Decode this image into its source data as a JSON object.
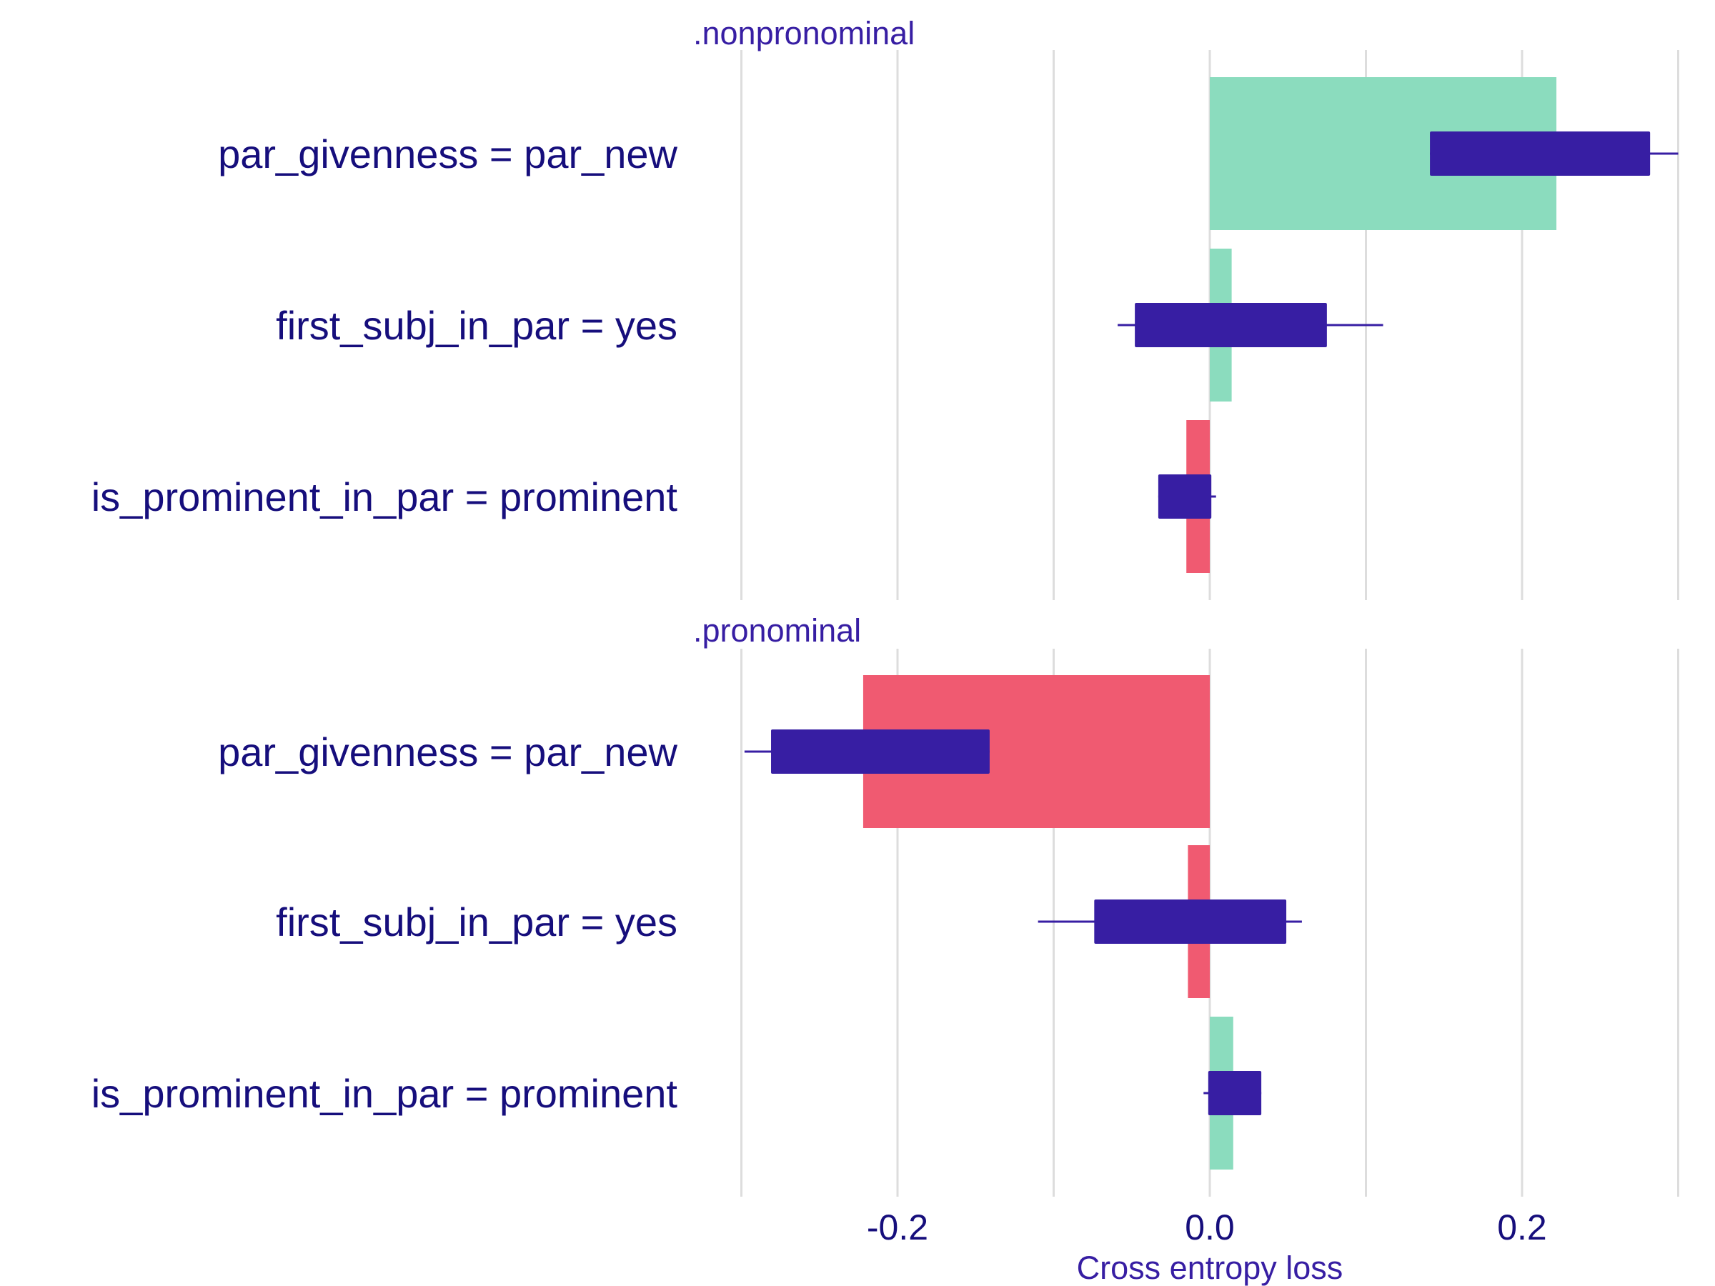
{
  "chart_data": {
    "type": "bar",
    "xlabel": "Cross entropy loss",
    "xlim": [
      -0.3,
      0.3
    ],
    "xticks": [
      -0.2,
      0.0,
      0.2
    ],
    "xtick_labels": [
      "-0.2",
      "0.0",
      "0.2"
    ],
    "grid": true,
    "colors": {
      "positive": "#8bdcbe",
      "negative": "#f05a71",
      "box": "#371ea3",
      "grid": "#dddddd",
      "label": "#160e7c"
    },
    "panels": [
      {
        "title": ".nonpronominal",
        "features": [
          {
            "label": "par_givenness = par_new",
            "contribution": 0.222,
            "whisker_min": 0.141,
            "q1": 0.141,
            "q3": 0.282,
            "whisker_max": 0.3
          },
          {
            "label": "first_subj_in_par = yes",
            "contribution": 0.014,
            "whisker_min": -0.059,
            "q1": -0.048,
            "q3": 0.075,
            "whisker_max": 0.111
          },
          {
            "label": "is_prominent_in_par = prominent",
            "contribution": -0.015,
            "whisker_min": -0.033,
            "q1": -0.033,
            "q3": 0.001,
            "whisker_max": 0.004
          }
        ]
      },
      {
        "title": ".pronominal",
        "features": [
          {
            "label": "par_givenness = par_new",
            "contribution": -0.222,
            "whisker_min": -0.298,
            "q1": -0.281,
            "q3": -0.141,
            "whisker_max": -0.141
          },
          {
            "label": "first_subj_in_par = yes",
            "contribution": -0.014,
            "whisker_min": -0.11,
            "q1": -0.074,
            "q3": 0.049,
            "whisker_max": 0.059
          },
          {
            "label": "is_prominent_in_par = prominent",
            "contribution": 0.015,
            "whisker_min": -0.004,
            "q1": -0.001,
            "q3": 0.033,
            "whisker_max": 0.033
          }
        ]
      }
    ]
  }
}
